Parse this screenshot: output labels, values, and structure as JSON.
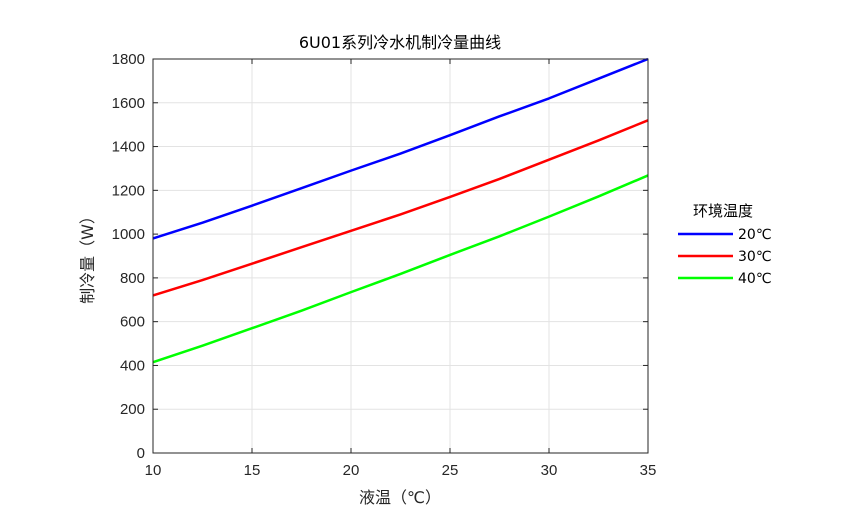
{
  "chart_data": {
    "type": "line",
    "title": "6U01系列冷水机制冷量曲线",
    "xlabel": "液温（℃）",
    "ylabel": "制冷量（W）",
    "xlim": [
      10,
      35
    ],
    "ylim": [
      0,
      1800
    ],
    "xticks": [
      "10",
      "15",
      "20",
      "25",
      "30",
      "35"
    ],
    "yticks": [
      "0",
      "200",
      "400",
      "600",
      "800",
      "1000",
      "1200",
      "1400",
      "1600",
      "1800"
    ],
    "grid": true,
    "legend_title": "环境温度",
    "legend_position": "right",
    "x": [
      10,
      12.5,
      15,
      17.5,
      20,
      22.5,
      25,
      27.5,
      30,
      32.5,
      35
    ],
    "series": [
      {
        "name": "20℃",
        "color": "#0000ff",
        "values": [
          980,
          1052,
          1130,
          1210,
          1290,
          1368,
          1452,
          1538,
          1620,
          1710,
          1800
        ]
      },
      {
        "name": "30℃",
        "color": "#ff0000",
        "values": [
          720,
          790,
          865,
          940,
          1015,
          1090,
          1170,
          1252,
          1340,
          1428,
          1520
        ]
      },
      {
        "name": "40℃",
        "color": "#00ff00",
        "values": [
          415,
          490,
          570,
          650,
          735,
          818,
          905,
          990,
          1080,
          1172,
          1268
        ]
      }
    ]
  }
}
